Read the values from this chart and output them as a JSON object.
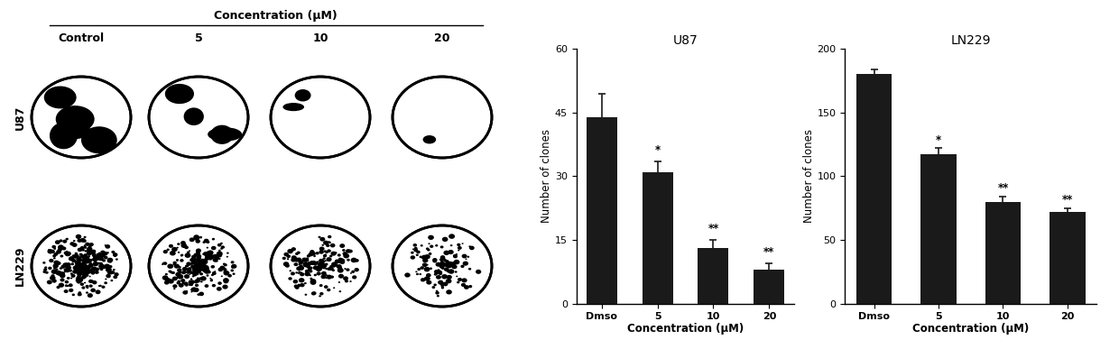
{
  "u87": {
    "title": "U87",
    "categories": [
      "Dmso",
      "5",
      "10",
      "20"
    ],
    "values": [
      44,
      31,
      13,
      8
    ],
    "errors": [
      5.5,
      2.5,
      2.0,
      1.5
    ],
    "significance": [
      "",
      "*",
      "**",
      "**"
    ],
    "ylabel": "Number of clones",
    "xlabel": "Concentration (μM)",
    "ylim": [
      0,
      60
    ],
    "yticks": [
      0,
      15,
      30,
      45,
      60
    ]
  },
  "ln229": {
    "title": "LN229",
    "categories": [
      "Dmso",
      "5",
      "10",
      "20"
    ],
    "values": [
      180,
      117,
      80,
      72
    ],
    "errors": [
      4,
      5,
      4,
      3
    ],
    "significance": [
      "",
      "*",
      "**",
      "**"
    ],
    "ylabel": "Number of clones",
    "xlabel": "Concentration (μM)",
    "ylim": [
      0,
      200
    ],
    "yticks": [
      0,
      50,
      100,
      150,
      200
    ]
  },
  "bar_color": "#1a1a1a",
  "error_color": "#1a1a1a",
  "background_color": "#ffffff",
  "title_fontsize": 10,
  "label_fontsize": 8.5,
  "tick_fontsize": 8,
  "sig_fontsize": 8.5,
  "bar_width": 0.55,
  "dish_cols": [
    "Control",
    "5",
    "10",
    "20"
  ],
  "dish_rows": [
    "U87",
    "LN229"
  ],
  "conc_label": "Concentration (μM)"
}
